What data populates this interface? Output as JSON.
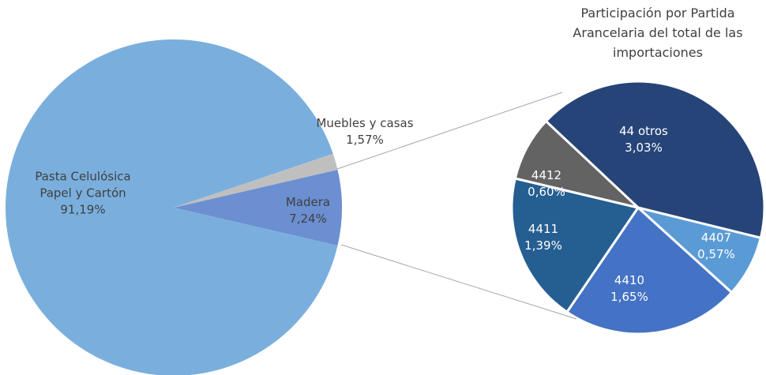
{
  "chart_data": [
    {
      "type": "pie",
      "categories": [
        "Pasta Celulósica Papel y Cartón",
        "Madera",
        "Muebles y casas"
      ],
      "values": [
        91.19,
        7.24,
        1.57
      ],
      "value_labels": [
        "91,19%",
        "7,24%",
        "1,57%"
      ],
      "colors": [
        "#7aafdd",
        "#6b8fd1",
        "#bfbfbf"
      ]
    },
    {
      "type": "pie",
      "title": "Participación por Partida Arancelaria del total de las importaciones",
      "categories": [
        "44 otros",
        "4407",
        "4410",
        "4411",
        "4412"
      ],
      "values": [
        3.03,
        0.57,
        1.65,
        1.39,
        0.6
      ],
      "value_labels": [
        "3,03%",
        "0,57%",
        "1,65%",
        "1,39%",
        "0,60%"
      ],
      "colors": [
        "#264478",
        "#5b9bd5",
        "#4472c4",
        "#255e91",
        "#636363"
      ]
    }
  ]
}
